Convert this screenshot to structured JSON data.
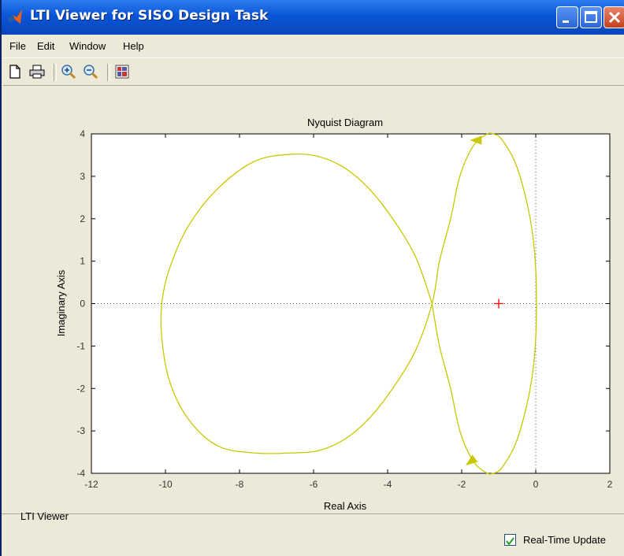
{
  "window": {
    "title": "LTI Viewer for SISO Design Task",
    "controls": [
      "minimize-icon",
      "maximize-icon",
      "close-icon"
    ]
  },
  "menu": {
    "items": [
      {
        "label": "File"
      },
      {
        "label": "Edit"
      },
      {
        "label": "Window"
      },
      {
        "label": "Help"
      }
    ]
  },
  "toolbar": {
    "tools": [
      "new-document-icon",
      "print-icon",
      "zoom-in-icon",
      "zoom-out-icon",
      "plot-configurations-icon"
    ]
  },
  "chart_data": {
    "type": "line",
    "title": "Nyquist Diagram",
    "xlabel": "Real Axis",
    "ylabel": "Imaginary Axis",
    "xlim": [
      -12,
      2
    ],
    "ylim": [
      -4,
      4
    ],
    "xticks": [
      -12,
      -10,
      -8,
      -6,
      -4,
      -2,
      0,
      2
    ],
    "yticks": [
      -4,
      -3,
      -2,
      -1,
      0,
      1,
      2,
      3,
      4
    ],
    "grid": false,
    "reference_lines": [
      {
        "axis": "x",
        "value": 0,
        "style": "dotted"
      },
      {
        "axis": "y",
        "value": 0,
        "style": "dotted"
      }
    ],
    "critical_point": {
      "x": -1,
      "y": 0,
      "marker": "+",
      "color": "#ff0000"
    },
    "series": [
      {
        "color": "#c8c800",
        "x": [
          -2.8,
          -3.3,
          -4.2,
          -5.0,
          -5.8,
          -6.6,
          -7.6,
          -8.6,
          -9.4,
          -9.9,
          -10.1,
          -10.1,
          -9.9,
          -9.4,
          -8.6,
          -7.6,
          -6.6,
          -5.8,
          -5.0,
          -4.2,
          -3.3,
          -2.8,
          -2.6,
          -2.3,
          -2.05,
          -1.7,
          -1.35,
          -1.15,
          -0.9,
          -0.5,
          -0.15,
          0.0,
          0.0,
          -0.15,
          -0.5,
          -0.9,
          -1.15,
          -1.35,
          -1.7,
          -2.05,
          -2.3,
          -2.6,
          -2.8
        ],
        "y": [
          0.0,
          1.2,
          2.4,
          3.1,
          3.45,
          3.52,
          3.35,
          2.7,
          1.8,
          0.8,
          0.0,
          -0.8,
          -1.8,
          -2.7,
          -3.35,
          -3.52,
          -3.52,
          -3.45,
          -3.1,
          -2.4,
          -1.2,
          0.0,
          1.0,
          2.0,
          3.0,
          3.7,
          3.98,
          4.0,
          3.85,
          3.2,
          2.0,
          0.8,
          -0.8,
          -2.0,
          -3.2,
          -3.85,
          -4.0,
          -3.98,
          -3.7,
          -3.0,
          -2.0,
          -1.0,
          0.0
        ]
      }
    ],
    "arrows": [
      {
        "x": -1.6,
        "y": 3.85,
        "direction": "left"
      },
      {
        "x": -1.75,
        "y": -3.72,
        "direction": "down-left"
      }
    ]
  },
  "status": {
    "text": "LTI Viewer",
    "realtime": {
      "label": "Real-Time Update",
      "checked": true
    }
  }
}
